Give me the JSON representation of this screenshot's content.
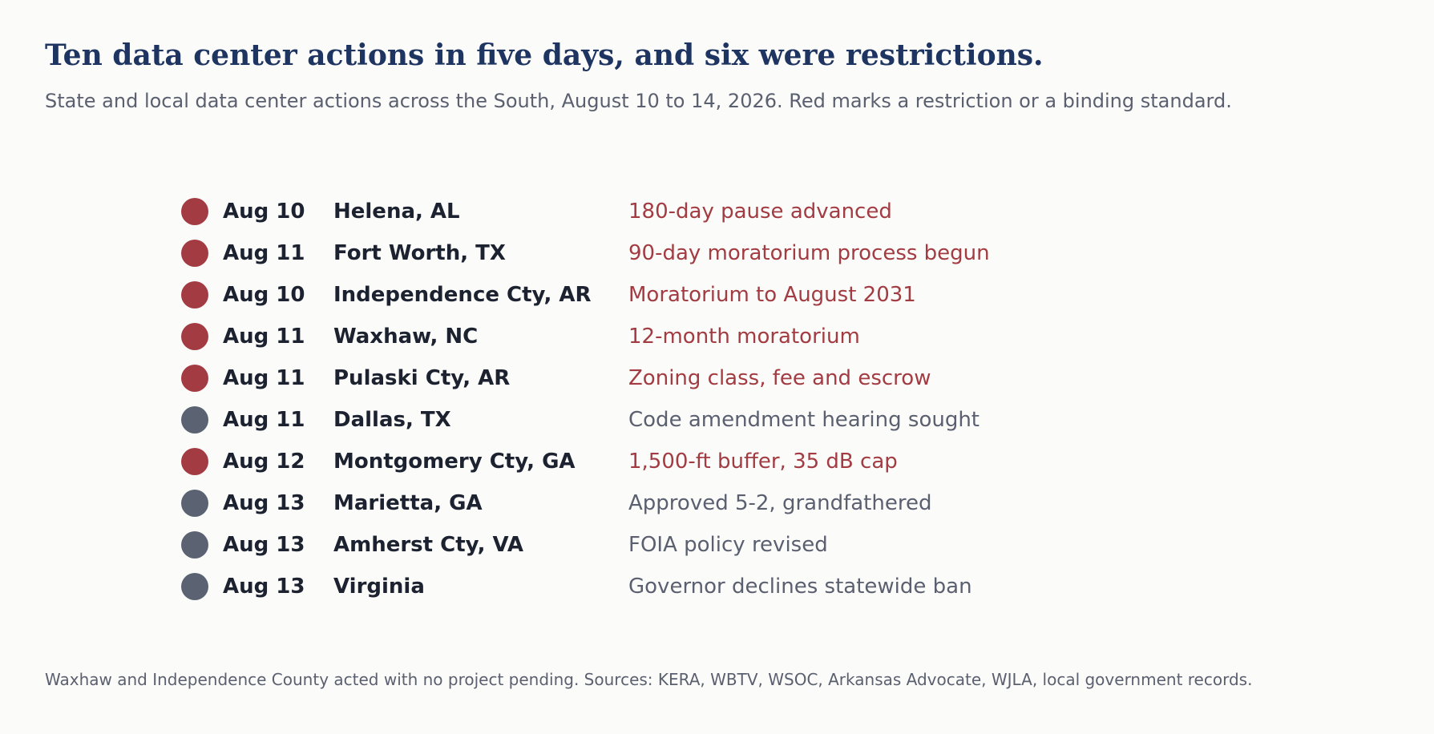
{
  "chart_data": {
    "type": "table",
    "title": "Ten data center actions in five days, and six were restrictions.",
    "subtitle": "State and local data center actions across the South, August 10 to 14, 2026. Red marks a restriction or a binding standard.",
    "footnote": "Waxhaw and Independence County acted with no project pending. Sources: KERA, WBTV, WSOC, Arkansas Advocate, WJLA, local government records.",
    "colors": {
      "restriction": "#a33c42",
      "other": "#5b6373",
      "text_dark": "#1c2230",
      "title": "#1e3461",
      "muted": "#5b6070"
    },
    "rows": [
      {
        "date": "Aug 10",
        "place": "Helena, AL",
        "action": "180-day pause advanced",
        "restriction": true
      },
      {
        "date": "Aug 11",
        "place": "Fort Worth, TX",
        "action": "90-day moratorium process begun",
        "restriction": true
      },
      {
        "date": "Aug 10",
        "place": "Independence Cty, AR",
        "action": "Moratorium to August 2031",
        "restriction": true
      },
      {
        "date": "Aug 11",
        "place": "Waxhaw, NC",
        "action": "12-month moratorium",
        "restriction": true
      },
      {
        "date": "Aug 11",
        "place": "Pulaski Cty, AR",
        "action": "Zoning class, fee and escrow",
        "restriction": true
      },
      {
        "date": "Aug 11",
        "place": "Dallas, TX",
        "action": "Code amendment hearing sought",
        "restriction": false
      },
      {
        "date": "Aug 12",
        "place": "Montgomery Cty, GA",
        "action": "1,500-ft buffer, 35 dB cap",
        "restriction": true
      },
      {
        "date": "Aug 13",
        "place": "Marietta, GA",
        "action": "Approved 5-2, grandfathered",
        "restriction": false
      },
      {
        "date": "Aug 13",
        "place": "Amherst Cty, VA",
        "action": "FOIA policy revised",
        "restriction": false
      },
      {
        "date": "Aug 13",
        "place": "Virginia",
        "action": "Governor declines statewide ban",
        "restriction": false
      }
    ]
  }
}
